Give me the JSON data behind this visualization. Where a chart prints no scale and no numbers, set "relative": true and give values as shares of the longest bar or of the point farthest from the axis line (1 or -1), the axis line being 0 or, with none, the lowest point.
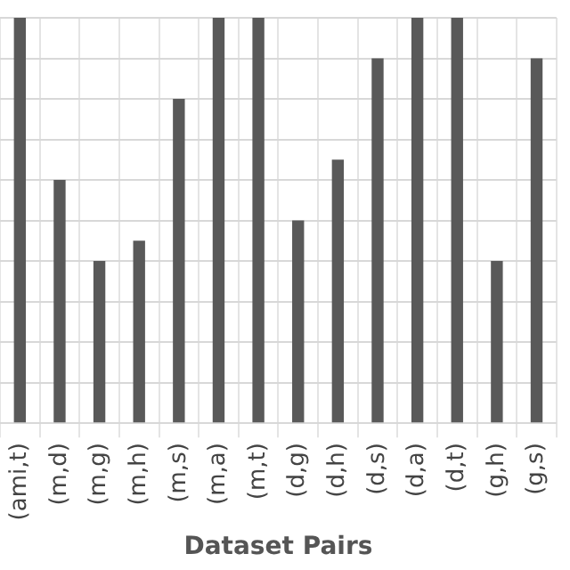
{
  "chart_data": {
    "type": "bar",
    "relative": true,
    "xlabel": "Dataset Pairs",
    "grid": true,
    "color": "#595959",
    "categories": [
      "(ami,t)",
      "(m,d)",
      "(m,g)",
      "(m,h)",
      "(m,s)",
      "(m,a)",
      "(m,t)",
      "(d,g)",
      "(d,h)",
      "(d,s)",
      "(d,a)",
      "(d,t)",
      "(g,h)",
      "(g,s)"
    ],
    "values": [
      1,
      0.6,
      0.4,
      0.45,
      0.8,
      1,
      1,
      0.5,
      0.65,
      0.9,
      1,
      1,
      0.4,
      0.9
    ]
  }
}
